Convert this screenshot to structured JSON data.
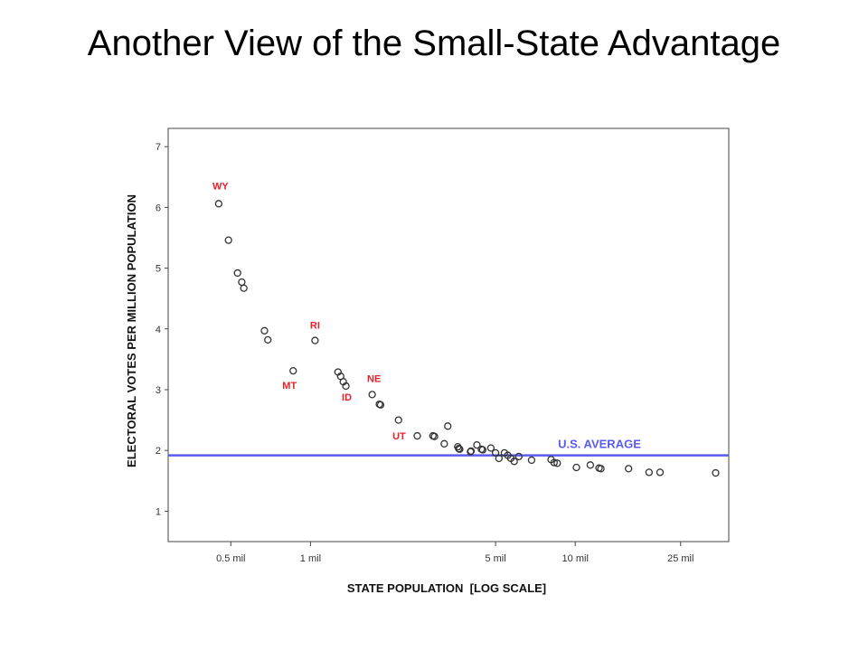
{
  "slide": {
    "title": "Another View of the Small-State Advantage"
  },
  "chart_data": {
    "type": "scatter",
    "title": "",
    "xlabel": "STATE POPULATION  [LOG SCALE]",
    "ylabel": "ELECTORAL VOTES PER MILLION POPULATION",
    "x_scale": "log",
    "x_unit": "million",
    "xlim": [
      0.29,
      38
    ],
    "ylim": [
      0.5,
      7.3
    ],
    "x_ticks": [
      {
        "value": 0.5,
        "label": "0.5 mil"
      },
      {
        "value": 1,
        "label": "1 mil"
      },
      {
        "value": 5,
        "label": "5 mil"
      },
      {
        "value": 10,
        "label": "10 mil"
      },
      {
        "value": 25,
        "label": "25 mil"
      }
    ],
    "y_ticks": [
      {
        "value": 1,
        "label": "1"
      },
      {
        "value": 2,
        "label": "2"
      },
      {
        "value": 3,
        "label": "3"
      },
      {
        "value": 4,
        "label": "4"
      },
      {
        "value": 5,
        "label": "5"
      },
      {
        "value": 6,
        "label": "6"
      },
      {
        "value": 7,
        "label": "7"
      }
    ],
    "grid": false,
    "marker_color": "#333333",
    "label_color": "#e8202a",
    "reference_line": {
      "y": 1.92,
      "label": "U.S. AVERAGE",
      "color": "#5b5bf0"
    },
    "points": [
      {
        "x": 0.45,
        "y": 6.06,
        "label": "WY"
      },
      {
        "x": 0.49,
        "y": 5.46
      },
      {
        "x": 0.53,
        "y": 4.92
      },
      {
        "x": 0.55,
        "y": 4.77
      },
      {
        "x": 0.56,
        "y": 4.67
      },
      {
        "x": 0.67,
        "y": 3.97
      },
      {
        "x": 0.69,
        "y": 3.82
      },
      {
        "x": 0.86,
        "y": 3.31,
        "label": "MT"
      },
      {
        "x": 1.04,
        "y": 3.81,
        "label": "RI"
      },
      {
        "x": 1.27,
        "y": 3.29
      },
      {
        "x": 1.3,
        "y": 3.22
      },
      {
        "x": 1.33,
        "y": 3.13
      },
      {
        "x": 1.36,
        "y": 3.06,
        "label": "ID"
      },
      {
        "x": 1.71,
        "y": 2.92,
        "label": "NE"
      },
      {
        "x": 1.82,
        "y": 2.76
      },
      {
        "x": 1.84,
        "y": 2.75
      },
      {
        "x": 2.15,
        "y": 2.5
      },
      {
        "x": 2.53,
        "y": 2.24,
        "label": "UT"
      },
      {
        "x": 2.9,
        "y": 2.24
      },
      {
        "x": 2.94,
        "y": 2.23
      },
      {
        "x": 3.2,
        "y": 2.11
      },
      {
        "x": 3.3,
        "y": 2.4
      },
      {
        "x": 3.6,
        "y": 2.06
      },
      {
        "x": 3.63,
        "y": 2.03
      },
      {
        "x": 3.66,
        "y": 2.02
      },
      {
        "x": 4.02,
        "y": 1.98
      },
      {
        "x": 4.04,
        "y": 1.99
      },
      {
        "x": 4.25,
        "y": 2.09
      },
      {
        "x": 4.42,
        "y": 2.02
      },
      {
        "x": 4.47,
        "y": 2.01
      },
      {
        "x": 4.8,
        "y": 2.04
      },
      {
        "x": 5.0,
        "y": 1.96
      },
      {
        "x": 5.15,
        "y": 1.87
      },
      {
        "x": 5.4,
        "y": 1.96
      },
      {
        "x": 5.56,
        "y": 1.92
      },
      {
        "x": 5.71,
        "y": 1.87
      },
      {
        "x": 5.88,
        "y": 1.82
      },
      {
        "x": 6.12,
        "y": 1.9
      },
      {
        "x": 6.84,
        "y": 1.84
      },
      {
        "x": 8.1,
        "y": 1.85
      },
      {
        "x": 8.32,
        "y": 1.8
      },
      {
        "x": 8.55,
        "y": 1.79
      },
      {
        "x": 10.1,
        "y": 1.72
      },
      {
        "x": 11.4,
        "y": 1.76
      },
      {
        "x": 12.3,
        "y": 1.71
      },
      {
        "x": 12.5,
        "y": 1.7
      },
      {
        "x": 15.9,
        "y": 1.7
      },
      {
        "x": 19.0,
        "y": 1.64
      },
      {
        "x": 20.9,
        "y": 1.64
      },
      {
        "x": 33.9,
        "y": 1.63
      }
    ]
  }
}
